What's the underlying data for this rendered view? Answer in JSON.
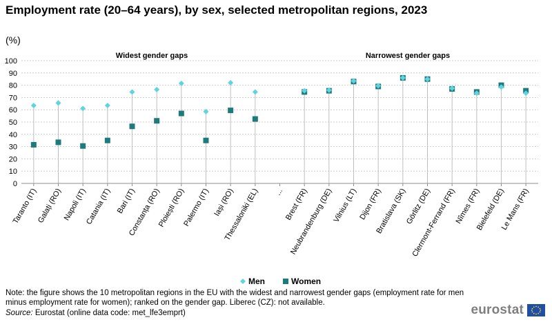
{
  "title": "Employment rate (20–64 years), by sex, selected metropolitan regions, 2023",
  "unit": "(%)",
  "note": "Note: the figure shows the 10 metropolitan regions in the EU with the widest and narrowest gender gaps (employment rate for men minus employment rate for women); ranked on the gender gap. Liberec (CZ): not available.",
  "source_label": "Source:",
  "source_text": "Eurostat (online data code: met_lfe3emprt)",
  "logo": {
    "text": "eurostat",
    "flag_icon": "eu-flag-icon"
  },
  "colors": {
    "men": "#5ed4e0",
    "women": "#1e7b7b",
    "stem": "#bfbfbf",
    "grid": "#bfbfbf"
  },
  "chart_data": {
    "type": "scatter",
    "ylim": [
      0,
      100
    ],
    "yticks": [
      0,
      10,
      20,
      30,
      40,
      50,
      60,
      70,
      80,
      90,
      100
    ],
    "group_labels": [
      "Widest gender gaps",
      "Narrowest gender gaps"
    ],
    "categories": [
      "Taranto (IT)",
      "Galați (RO)",
      "Napoli (IT)",
      "Catania (IT)",
      "Bari (IT)",
      "Constanța (RO)",
      "Ploiești (RO)",
      "Palermo (IT)",
      "Iași (RO)",
      "Thessaloniki (EL)",
      "...",
      "Brest (FR)",
      "Neubrandenburg (DE)",
      "Vilnius (LT)",
      "Dijon (FR)",
      "Bratislava (SK)",
      "Görlitz (DE)",
      "Clermont-Ferrand (FR)",
      "Nîmes (FR)",
      "Bielefeld (DE)",
      "Le Mans (FR)"
    ],
    "series": [
      {
        "name": "Men",
        "values": [
          63.5,
          65.5,
          61.0,
          63.5,
          74.5,
          76.5,
          81.5,
          58.5,
          82.0,
          74.5,
          null,
          75.5,
          76.0,
          83.5,
          79.5,
          86.0,
          85.0,
          77.5,
          73.5,
          78.5,
          73.5
        ]
      },
      {
        "name": "Women",
        "values": [
          31.5,
          33.5,
          30.5,
          35.0,
          46.5,
          51.0,
          57.0,
          35.0,
          59.5,
          52.5,
          null,
          74.5,
          75.5,
          83.0,
          79.0,
          86.0,
          85.0,
          77.0,
          74.5,
          80.0,
          75.5
        ]
      }
    ]
  }
}
